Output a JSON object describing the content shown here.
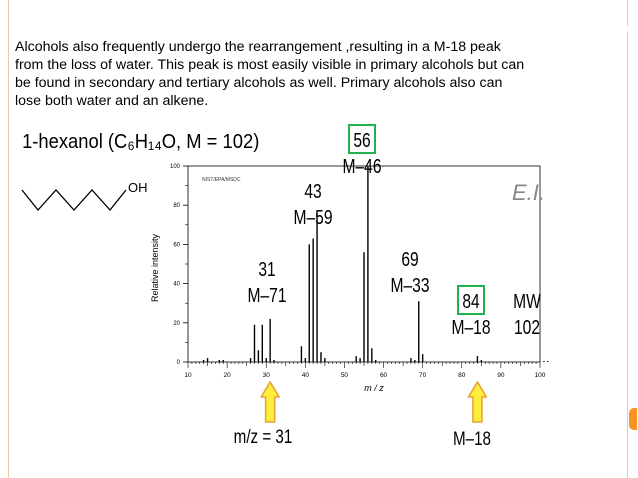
{
  "paragraph": [
    "Alcohols also frequently undergo the rearrangement ,resulting in a M-18 peak",
    "from the loss of water. This peak is most easily visible in primary alcohols but can",
    "be found in secondary and tertiary alcohols as well. Primary alcohols also can",
    "lose both water and an alkene."
  ],
  "molecule": {
    "title": "1-hexanol (C₆H₁₄O, M = 102)",
    "oh_label": "OH"
  },
  "colors": {
    "accent_orange": "#f7931e",
    "highlight_green": "#22b14c",
    "arrow_fill": "#ffef3a",
    "arrow_stroke": "#e8a23a",
    "bar": "#000000",
    "frame": "#e8c9a0"
  },
  "chart_data": {
    "type": "bar",
    "instrument_note": "NIST/EPA/MSDC",
    "ionization_label": "E.I.",
    "xlabel": "m / z",
    "ylabel": "Relative intensity",
    "xlim": [
      10,
      100
    ],
    "ylim": [
      0,
      100
    ],
    "x_ticks": [
      "10",
      "20",
      "30",
      "40",
      "50",
      "60",
      "70",
      "80",
      "90",
      "100"
    ],
    "y_ticks": [
      "0",
      "20",
      "40",
      "60",
      "80",
      "100"
    ],
    "peaks": [
      {
        "x": 14,
        "y": 1
      },
      {
        "x": 15,
        "y": 2
      },
      {
        "x": 18,
        "y": 1
      },
      {
        "x": 19,
        "y": 1
      },
      {
        "x": 26,
        "y": 2
      },
      {
        "x": 27,
        "y": 19
      },
      {
        "x": 28,
        "y": 6
      },
      {
        "x": 29,
        "y": 19
      },
      {
        "x": 30,
        "y": 2
      },
      {
        "x": 31,
        "y": 22
      },
      {
        "x": 32,
        "y": 1
      },
      {
        "x": 39,
        "y": 8
      },
      {
        "x": 40,
        "y": 2
      },
      {
        "x": 41,
        "y": 60
      },
      {
        "x": 42,
        "y": 63
      },
      {
        "x": 43,
        "y": 76
      },
      {
        "x": 44,
        "y": 5
      },
      {
        "x": 45,
        "y": 2
      },
      {
        "x": 53,
        "y": 3
      },
      {
        "x": 54,
        "y": 2
      },
      {
        "x": 55,
        "y": 56
      },
      {
        "x": 56,
        "y": 100
      },
      {
        "x": 57,
        "y": 7
      },
      {
        "x": 58,
        "y": 1
      },
      {
        "x": 67,
        "y": 2
      },
      {
        "x": 68,
        "y": 1
      },
      {
        "x": 69,
        "y": 31
      },
      {
        "x": 70,
        "y": 4
      },
      {
        "x": 84,
        "y": 3
      },
      {
        "x": 85,
        "y": 1
      },
      {
        "x": 101,
        "y": 0.5
      },
      {
        "x": 102,
        "y": 0.5
      }
    ],
    "peak_labels": [
      {
        "id": "56",
        "value": "56",
        "sub": "M–46",
        "boxed": true
      },
      {
        "id": "43",
        "value": "43",
        "sub": "M–59",
        "boxed": false
      },
      {
        "id": "69",
        "value": "69",
        "sub": "M–33",
        "boxed": false
      },
      {
        "id": "31",
        "value": "31",
        "sub": "M–71",
        "boxed": false
      },
      {
        "id": "84",
        "value": "84",
        "sub": "M–18",
        "boxed": true
      },
      {
        "id": "mw",
        "value": "MW",
        "sub": "102",
        "boxed": false
      }
    ],
    "arrow_annotations": [
      {
        "id": "mz31",
        "x": 31,
        "text": "m/z = 31"
      },
      {
        "id": "m18",
        "x": 84,
        "text": "M–18"
      }
    ]
  }
}
